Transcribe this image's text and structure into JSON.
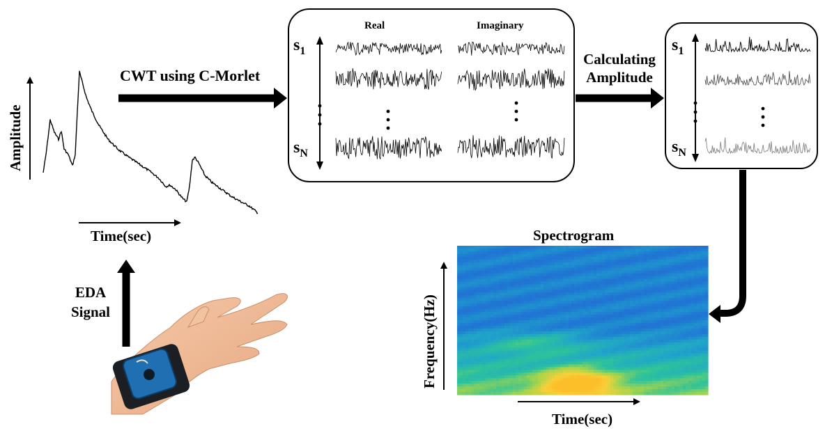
{
  "diagram": {
    "steps": {
      "cwt": "CWT using C-Morlet",
      "calc_amplitude": "Calculating Amplitude",
      "eda_signal": "EDA Signal"
    },
    "raw_signal_plot": {
      "ylabel": "Amplitude",
      "xlabel": "Time(sec)"
    },
    "coefficients_box": {
      "real_label": "Real",
      "imag_label": "Imaginary",
      "scale_first": "s",
      "scale_first_sub": "1",
      "scale_last": "s",
      "scale_last_sub": "N"
    },
    "amplitude_box": {
      "scale_first": "s",
      "scale_first_sub": "1",
      "scale_last": "s",
      "scale_last_sub": "N"
    },
    "spectrogram": {
      "title": "Spectrogram",
      "ylabel": "Frequency(Hz)",
      "xlabel": "Time(sec)",
      "colormap": [
        "#3b4cc0",
        "#1f78d4",
        "#20a6c8",
        "#2ec39a",
        "#a8d44a",
        "#f6d03a",
        "#fcbf2a"
      ]
    },
    "device_image": "wrist-worn-eda-sensor-hand"
  }
}
